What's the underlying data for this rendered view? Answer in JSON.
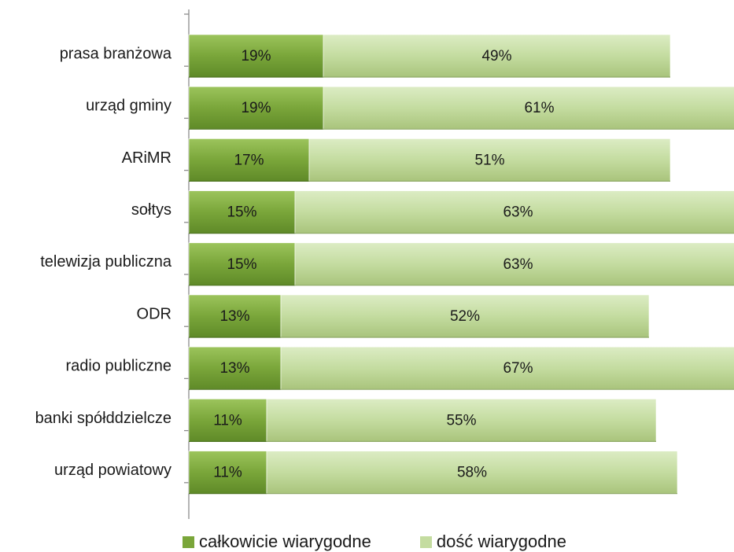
{
  "chart_data": {
    "type": "bar",
    "orientation": "horizontal",
    "stacked": true,
    "categories": [
      "prasa branżowa",
      "urząd gminy",
      "ARiMR",
      "sołtys",
      "telewizja publiczna",
      "ODR",
      "radio publiczne",
      "banki spółddzielcze",
      "urząd powiatowy"
    ],
    "series": [
      {
        "name": "całkowicie wiarygodne",
        "values": [
          19,
          19,
          17,
          15,
          15,
          13,
          13,
          11,
          11
        ],
        "labels": [
          "19%",
          "19%",
          "17%",
          "15%",
          "15%",
          "13%",
          "13%",
          "11%",
          "11%"
        ],
        "color": "#7aa63a"
      },
      {
        "name": "dość wiarygodne",
        "values": [
          49,
          61,
          51,
          63,
          63,
          52,
          67,
          55,
          58
        ],
        "labels": [
          "49%",
          "61%",
          "51%",
          "63%",
          "63%",
          "52%",
          "67%",
          "55%",
          "58%"
        ],
        "color": "#c4dca0"
      }
    ],
    "xlim": [
      0,
      77
    ],
    "grid": false,
    "legend_position": "bottom"
  }
}
